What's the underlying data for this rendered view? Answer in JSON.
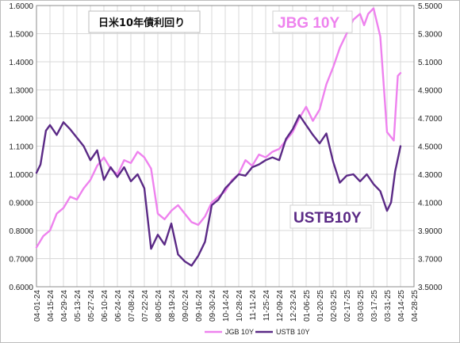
{
  "chart_data": {
    "type": "line",
    "title": "日米10年債利回り",
    "left_axis": {
      "min": 0.6,
      "max": 1.6,
      "step": 0.1,
      "tick_labels": [
        "0.6000",
        "0.7000",
        "0.8000",
        "0.9000",
        "1.0000",
        "1.1000",
        "1.2000",
        "1.3000",
        "1.4000",
        "1.5000",
        "1.6000"
      ]
    },
    "right_axis": {
      "min": 3.5,
      "max": 5.5,
      "step": 0.2,
      "tick_labels": [
        "3.5000",
        "3.7000",
        "3.9000",
        "4.1000",
        "4.3000",
        "4.5000",
        "4.7000",
        "4.9000",
        "5.1000",
        "5.3000",
        "5.5000"
      ]
    },
    "x_tick_labels": [
      "04-01-24",
      "04-15-24",
      "04-29-24",
      "05-13-24",
      "05-27-24",
      "06-10-24",
      "06-24-24",
      "07-08-24",
      "07-22-24",
      "08-05-24",
      "08-19-24",
      "09-02-24",
      "09-16-24",
      "09-30-24",
      "10-14-24",
      "10-28-24",
      "11-11-24",
      "11-25-24",
      "12-09-24",
      "12-23-24",
      "01-06-25",
      "01-20-25",
      "02-03-25",
      "02-17-25",
      "03-03-25",
      "03-17-25",
      "03-31-25",
      "04-14-25",
      "04-28-25"
    ],
    "grid": true,
    "legend_position": "bottom",
    "series": [
      {
        "name": "JGB 10Y",
        "label": "JBG 10Y",
        "axis": "left",
        "color": "#ee82ee",
        "x": [
          0,
          0.5,
          1,
          1.5,
          2,
          2.5,
          3,
          3.5,
          4,
          4.5,
          5,
          5.5,
          6,
          6.5,
          7,
          7.5,
          8,
          8.5,
          9,
          9.5,
          10,
          10.5,
          11,
          11.5,
          12,
          12.5,
          13,
          13.5,
          14,
          14.5,
          15,
          15.5,
          16,
          16.5,
          17,
          17.5,
          18,
          18.5,
          19,
          19.5,
          20,
          20.5,
          21,
          21.5,
          22,
          22.5,
          23,
          23.5,
          24,
          24.3,
          24.6,
          25,
          25.5,
          26,
          26.5,
          26.8,
          27
        ],
        "y": [
          0.74,
          0.78,
          0.8,
          0.86,
          0.88,
          0.92,
          0.91,
          0.95,
          0.98,
          1.03,
          1.06,
          1.02,
          1.0,
          1.05,
          1.04,
          1.08,
          1.06,
          1.02,
          0.86,
          0.84,
          0.87,
          0.89,
          0.86,
          0.83,
          0.82,
          0.85,
          0.9,
          0.92,
          0.94,
          0.98,
          1.0,
          1.05,
          1.03,
          1.07,
          1.06,
          1.08,
          1.09,
          1.12,
          1.15,
          1.2,
          1.24,
          1.19,
          1.23,
          1.32,
          1.38,
          1.45,
          1.5,
          1.55,
          1.57,
          1.53,
          1.57,
          1.59,
          1.49,
          1.15,
          1.12,
          1.35,
          1.36
        ]
      },
      {
        "name": "USTB 10Y",
        "label": "USTB10Y",
        "axis": "right",
        "color": "#5b2a86",
        "x": [
          0,
          0.3,
          0.7,
          1,
          1.5,
          2,
          2.5,
          3,
          3.5,
          4,
          4.5,
          5,
          5.5,
          6,
          6.5,
          7,
          7.5,
          8,
          8.5,
          9,
          9.5,
          10,
          10.5,
          11,
          11.5,
          12,
          12.5,
          13,
          13.5,
          14,
          14.5,
          15,
          15.5,
          16,
          16.5,
          17,
          17.5,
          18,
          18.5,
          19,
          19.5,
          20,
          20.5,
          21,
          21.5,
          22,
          22.5,
          23,
          23.5,
          24,
          24.5,
          25,
          25.5,
          26,
          26.3,
          26.6,
          27
        ],
        "y": [
          4.31,
          4.37,
          4.61,
          4.65,
          4.58,
          4.67,
          4.62,
          4.56,
          4.5,
          4.4,
          4.47,
          4.26,
          4.35,
          4.28,
          4.35,
          4.25,
          4.3,
          4.2,
          3.77,
          3.87,
          3.8,
          3.95,
          3.73,
          3.68,
          3.65,
          3.72,
          3.82,
          4.08,
          4.12,
          4.2,
          4.25,
          4.3,
          4.29,
          4.35,
          4.37,
          4.4,
          4.42,
          4.4,
          4.55,
          4.62,
          4.72,
          4.65,
          4.58,
          4.52,
          4.59,
          4.39,
          4.24,
          4.29,
          4.3,
          4.25,
          4.3,
          4.23,
          4.18,
          4.04,
          4.1,
          4.32,
          4.5
        ]
      }
    ]
  }
}
